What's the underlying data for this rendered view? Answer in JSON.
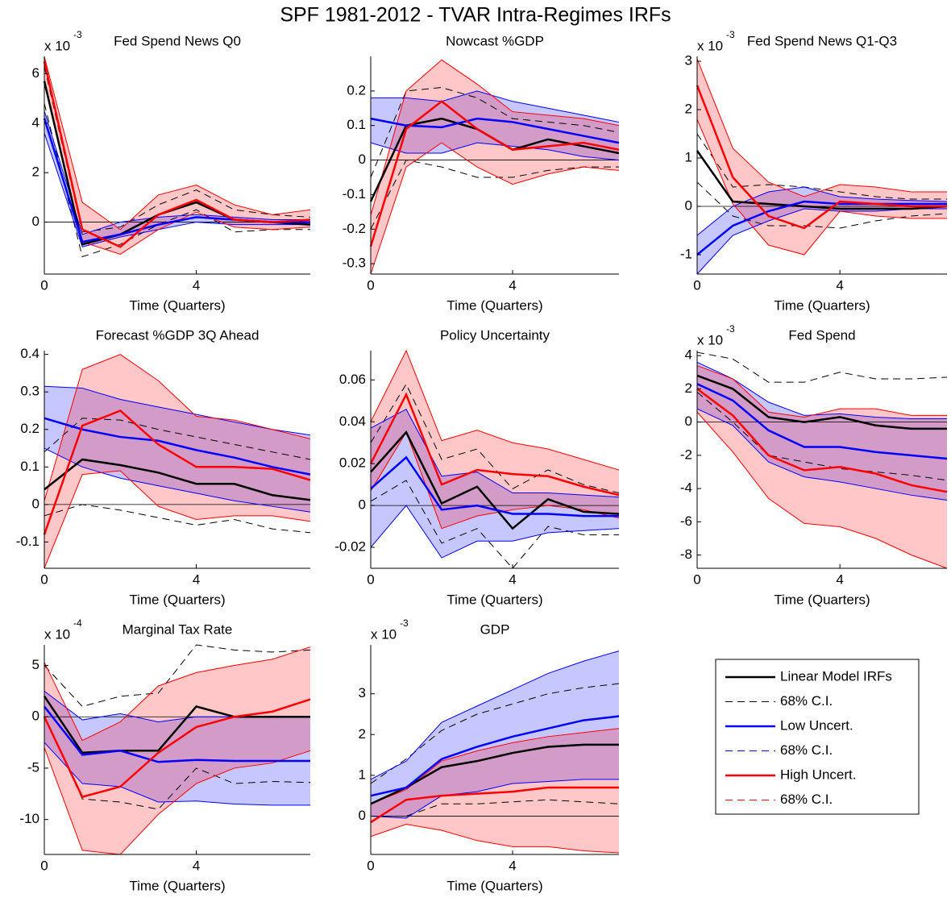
{
  "title": "SPF 1981-2012 - TVAR Intra-Regimes IRFs",
  "legend": {
    "entries": [
      {
        "label": "Linear Model IRFs",
        "color": "#000000",
        "style": "solid"
      },
      {
        "label": "68% C.I.",
        "color": "#000000",
        "style": "dashed"
      },
      {
        "label": "Low Uncert.",
        "color": "#0000ff",
        "style": "solid"
      },
      {
        "label": "68% C.I.",
        "color": "#0000ff",
        "style": "dashed"
      },
      {
        "label": "High Uncert.",
        "color": "#ff0000",
        "style": "solid"
      },
      {
        "label": "68% C.I.",
        "color": "#ff0000",
        "style": "dashed"
      }
    ]
  },
  "chart_data": [
    {
      "type": "line",
      "title": "Fed Spend News Q0",
      "xlabel": "Time (Quarters)",
      "multiplier": {
        "base": "x 10",
        "exponent": "-3"
      },
      "x": [
        0,
        1,
        2,
        3,
        4,
        5,
        6,
        7
      ],
      "xlim": [
        0,
        7
      ],
      "xticks": [
        0,
        4
      ],
      "ylim": [
        -2.1,
        6.7
      ],
      "yticks": [
        0,
        2,
        4,
        6
      ],
      "series": [
        {
          "color": "#000000",
          "band": false,
          "values": [
            5.7,
            -0.9,
            -0.5,
            0.3,
            0.8,
            0.1,
            0,
            -0.1
          ],
          "ci_lower": [
            4.8,
            -1.4,
            -0.9,
            -0.1,
            0.5,
            -0.4,
            -0.3,
            -0.3
          ],
          "ci_upper": [
            6.3,
            -0.4,
            -0.2,
            0.7,
            1.3,
            0.5,
            0.3,
            0.2
          ]
        },
        {
          "color": "#0000ff",
          "band": true,
          "values": [
            4.2,
            -0.8,
            -0.5,
            -0.1,
            0.2,
            0.1,
            0,
            0
          ],
          "ci_lower": [
            3.6,
            -1,
            -0.6,
            -0.3,
            0,
            -0.1,
            -0.1,
            -0.1
          ],
          "ci_upper": [
            4.5,
            -0.5,
            0,
            0.2,
            0.3,
            0.2,
            0.1,
            0.1
          ]
        },
        {
          "color": "#ff0000",
          "band": true,
          "values": [
            6.5,
            -0.3,
            -1.0,
            0.3,
            0.9,
            0.1,
            0,
            0.1
          ],
          "ci_lower": [
            5.6,
            -0.8,
            -1.3,
            -0.3,
            0.4,
            -0.2,
            -0.3,
            -0.2
          ],
          "ci_upper": [
            6.7,
            0.8,
            -0.3,
            1.1,
            1.5,
            0.7,
            0.3,
            0.5
          ]
        }
      ]
    },
    {
      "type": "line",
      "title": "Nowcast %GDP",
      "xlabel": "Time (Quarters)",
      "x": [
        0,
        1,
        2,
        3,
        4,
        5,
        6,
        7
      ],
      "xlim": [
        0,
        7
      ],
      "xticks": [
        0,
        4
      ],
      "ylim": [
        -0.33,
        0.3
      ],
      "yticks": [
        -0.3,
        -0.2,
        -0.1,
        0,
        0.1,
        0.2
      ],
      "series": [
        {
          "color": "#000000",
          "band": false,
          "values": [
            -0.12,
            0.1,
            0.12,
            0.09,
            0.03,
            0.06,
            0.04,
            0.02
          ],
          "ci_lower": [
            -0.2,
            0,
            -0.02,
            -0.05,
            -0.05,
            -0.03,
            -0.02,
            -0.02
          ],
          "ci_upper": [
            -0.05,
            0.2,
            0.21,
            0.18,
            0.12,
            0.11,
            0.1,
            0.08
          ]
        },
        {
          "color": "#0000ff",
          "band": true,
          "values": [
            0.12,
            0.1,
            0.095,
            0.12,
            0.11,
            0.09,
            0.07,
            0.05
          ],
          "ci_lower": [
            0.05,
            0.02,
            0.02,
            0.05,
            0.04,
            0.03,
            0.01,
            0
          ],
          "ci_upper": [
            0.18,
            0.18,
            0.17,
            0.2,
            0.17,
            0.15,
            0.13,
            0.11
          ]
        },
        {
          "color": "#ff0000",
          "band": true,
          "values": [
            -0.25,
            0.09,
            0.17,
            0.09,
            0.03,
            0.04,
            0.05,
            0.03
          ],
          "ci_lower": [
            -0.33,
            -0.02,
            0.05,
            -0.02,
            -0.07,
            -0.04,
            -0.02,
            -0.03
          ],
          "ci_upper": [
            -0.16,
            0.2,
            0.29,
            0.22,
            0.14,
            0.13,
            0.12,
            0.1
          ]
        }
      ]
    },
    {
      "type": "line",
      "title": "Fed Spend News Q1-Q3",
      "xlabel": "Time (Quarters)",
      "multiplier": {
        "base": "x 10",
        "exponent": "-3"
      },
      "x": [
        0,
        1,
        2,
        3,
        4,
        5,
        6,
        7
      ],
      "xlim": [
        0,
        7
      ],
      "xticks": [
        0,
        4
      ],
      "ylim": [
        -1.4,
        3.1
      ],
      "yticks": [
        -1,
        0,
        1,
        2,
        3
      ],
      "series": [
        {
          "color": "#000000",
          "band": false,
          "values": [
            1.15,
            0.1,
            0.05,
            0,
            -0.05,
            -0.05,
            -0.05,
            0
          ],
          "ci_lower": [
            0.5,
            -0.2,
            -0.4,
            -0.4,
            -0.45,
            -0.3,
            -0.2,
            -0.15
          ],
          "ci_upper": [
            1.5,
            0.4,
            0.45,
            0.4,
            0.3,
            0.2,
            0.15,
            0.15
          ]
        },
        {
          "color": "#0000ff",
          "band": true,
          "values": [
            -1,
            -0.4,
            -0.1,
            0.1,
            0.05,
            0.05,
            0.05,
            0.05
          ],
          "ci_lower": [
            -1.4,
            -0.6,
            -0.3,
            -0.05,
            -0.1,
            -0.1,
            -0.05,
            -0.05
          ],
          "ci_upper": [
            -0.6,
            0,
            0.3,
            0.4,
            0.2,
            0.15,
            0.12,
            0.1
          ]
        },
        {
          "color": "#ff0000",
          "band": true,
          "values": [
            2.5,
            0.6,
            -0.2,
            -0.45,
            0.1,
            0.05,
            0,
            0
          ],
          "ci_lower": [
            1.8,
            0.05,
            -0.8,
            -1.0,
            -0.1,
            -0.2,
            -0.25,
            -0.25
          ],
          "ci_upper": [
            3.05,
            1.2,
            0.5,
            0.2,
            0.45,
            0.4,
            0.3,
            0.3
          ]
        }
      ]
    },
    {
      "type": "line",
      "title": "Forecast %GDP 3Q Ahead",
      "xlabel": "Time (Quarters)",
      "x": [
        0,
        1,
        2,
        3,
        4,
        5,
        6,
        7
      ],
      "xlim": [
        0,
        7
      ],
      "xticks": [
        0,
        4
      ],
      "ylim": [
        -0.17,
        0.41
      ],
      "yticks": [
        -0.1,
        0,
        0.1,
        0.2,
        0.3,
        0.4
      ],
      "series": [
        {
          "color": "#000000",
          "band": false,
          "values": [
            0.04,
            0.12,
            0.105,
            0.085,
            0.055,
            0.055,
            0.025,
            0.012
          ],
          "ci_lower": [
            -0.03,
            0,
            -0.015,
            -0.035,
            -0.055,
            -0.04,
            -0.065,
            -0.075
          ],
          "ci_upper": [
            0.14,
            0.23,
            0.225,
            0.2,
            0.18,
            0.16,
            0.14,
            0.12
          ]
        },
        {
          "color": "#0000ff",
          "band": true,
          "values": [
            0.23,
            0.2,
            0.18,
            0.17,
            0.145,
            0.125,
            0.1,
            0.08
          ],
          "ci_lower": [
            0.15,
            0.1,
            0.07,
            0.05,
            0.03,
            0.01,
            -0.005,
            -0.02
          ],
          "ci_upper": [
            0.315,
            0.31,
            0.28,
            0.26,
            0.24,
            0.22,
            0.2,
            0.185
          ]
        },
        {
          "color": "#ff0000",
          "band": true,
          "values": [
            -0.08,
            0.21,
            0.25,
            0.16,
            0.1,
            0.1,
            0.095,
            0.065
          ],
          "ci_lower": [
            -0.17,
            0.08,
            0.09,
            -0.005,
            -0.04,
            -0.03,
            -0.03,
            -0.045
          ],
          "ci_upper": [
            0.01,
            0.36,
            0.4,
            0.33,
            0.235,
            0.225,
            0.2,
            0.175
          ]
        }
      ]
    },
    {
      "type": "line",
      "title": "Policy Uncertainty",
      "xlabel": "Time (Quarters)",
      "x": [
        0,
        1,
        2,
        3,
        4,
        5,
        6,
        7
      ],
      "xlim": [
        0,
        7
      ],
      "xticks": [
        0,
        4
      ],
      "ylim": [
        -0.03,
        0.074
      ],
      "yticks": [
        -0.02,
        0,
        0.02,
        0.04,
        0.06
      ],
      "series": [
        {
          "color": "#000000",
          "band": false,
          "values": [
            0.016,
            0.035,
            0.001,
            0.009,
            -0.011,
            0.003,
            -0.003,
            -0.004
          ],
          "ci_lower": [
            0.002,
            0.012,
            -0.018,
            -0.011,
            -0.03,
            -0.01,
            -0.014,
            -0.014
          ],
          "ci_upper": [
            0.03,
            0.058,
            0.022,
            0.027,
            0.008,
            0.017,
            0.01,
            0.006
          ]
        },
        {
          "color": "#0000ff",
          "band": true,
          "values": [
            0.008,
            0.023,
            -0.002,
            0,
            -0.004,
            -0.004,
            -0.005,
            -0.005
          ],
          "ci_lower": [
            -0.02,
            0,
            -0.025,
            -0.017,
            -0.017,
            -0.013,
            -0.012,
            -0.011
          ],
          "ci_upper": [
            0.037,
            0.046,
            0.014,
            0.016,
            0.006,
            0.006,
            0.005,
            0.004
          ]
        },
        {
          "color": "#ff0000",
          "band": true,
          "values": [
            0.02,
            0.053,
            0.01,
            0.017,
            0.015,
            0.014,
            0.009,
            0.005
          ],
          "ci_lower": [
            0.007,
            0.035,
            -0.011,
            -0.005,
            -0.002,
            0,
            -0.002,
            -0.006
          ],
          "ci_upper": [
            0.04,
            0.074,
            0.031,
            0.036,
            0.03,
            0.027,
            0.022,
            0.017
          ]
        }
      ]
    },
    {
      "type": "line",
      "title": "Fed Spend",
      "xlabel": "Time (Quarters)",
      "multiplier": {
        "base": "x 10",
        "exponent": "-3"
      },
      "x": [
        0,
        1,
        2,
        3,
        4,
        5,
        6,
        7
      ],
      "xlim": [
        0,
        7
      ],
      "xticks": [
        0,
        4
      ],
      "ylim": [
        -8.8,
        4.3
      ],
      "yticks": [
        -8,
        -6,
        -4,
        -2,
        0,
        2,
        4
      ],
      "series": [
        {
          "color": "#000000",
          "band": false,
          "values": [
            2.8,
            2,
            0.3,
            0,
            0.3,
            -0.2,
            -0.4,
            -0.4
          ],
          "ci_lower": [
            1.8,
            0,
            -2,
            -2.4,
            -2.8,
            -3,
            -3.2,
            -3.5
          ],
          "ci_upper": [
            4.2,
            3.8,
            2.4,
            2.4,
            3,
            2.6,
            2.6,
            2.7
          ]
        },
        {
          "color": "#0000ff",
          "band": true,
          "values": [
            2.3,
            1.3,
            -0.5,
            -1.5,
            -1.5,
            -1.8,
            -2,
            -2.2
          ],
          "ci_lower": [
            0.8,
            -0.2,
            -2.4,
            -3.3,
            -3.6,
            -4,
            -4.4,
            -4.7
          ],
          "ci_upper": [
            3.6,
            2.6,
            1.2,
            0.4,
            0.5,
            0.3,
            0.2,
            0.2
          ]
        },
        {
          "color": "#ff0000",
          "band": true,
          "values": [
            2,
            0.4,
            -2,
            -2.9,
            -2.7,
            -3.1,
            -3.8,
            -4.2
          ],
          "ci_lower": [
            0.6,
            -1.8,
            -4.6,
            -6.1,
            -6.3,
            -7,
            -8,
            -8.8
          ],
          "ci_upper": [
            3.4,
            2.6,
            0.6,
            0.3,
            0.8,
            0.8,
            0.4,
            0.4
          ]
        }
      ]
    },
    {
      "type": "line",
      "title": "Marginal Tax Rate",
      "xlabel": "Time (Quarters)",
      "multiplier": {
        "base": "x 10",
        "exponent": "-4"
      },
      "x": [
        0,
        1,
        2,
        3,
        4,
        5,
        6,
        7
      ],
      "xlim": [
        0,
        7
      ],
      "xticks": [
        0,
        4
      ],
      "ylim": [
        -13.4,
        7
      ],
      "yticks": [
        -10,
        -5,
        0,
        5
      ],
      "series": [
        {
          "color": "#000000",
          "band": false,
          "values": [
            2,
            -3.5,
            -3.3,
            -3.3,
            1,
            0,
            0,
            0
          ],
          "ci_lower": [
            0,
            -8,
            -8.3,
            -9,
            -5,
            -6.5,
            -6.3,
            -6.4
          ],
          "ci_upper": [
            5,
            1,
            2,
            2.3,
            7,
            6.5,
            6.3,
            6.5
          ]
        },
        {
          "color": "#0000ff",
          "band": true,
          "values": [
            1,
            -3.7,
            -3.3,
            -4.4,
            -4.2,
            -4.3,
            -4.3,
            -4.3
          ],
          "ci_lower": [
            -2.5,
            -6.5,
            -6.8,
            -8.3,
            -8.2,
            -8.5,
            -8.6,
            -8.6
          ],
          "ci_upper": [
            2.5,
            -0.3,
            0.3,
            -0.5,
            0,
            0,
            0,
            0
          ]
        },
        {
          "color": "#ff0000",
          "band": true,
          "values": [
            0,
            -7.8,
            -6.8,
            -3.5,
            -1,
            0,
            0.5,
            1.7
          ],
          "ci_lower": [
            -3,
            -13,
            -13.4,
            -9.5,
            -6.5,
            -5,
            -4.5,
            -3.3
          ],
          "ci_upper": [
            5.3,
            -2.3,
            -0.5,
            3,
            4.3,
            5,
            5.6,
            6.8
          ]
        }
      ]
    },
    {
      "type": "line",
      "title": "GDP",
      "xlabel": "Time (Quarters)",
      "multiplier": {
        "base": "x 10",
        "exponent": "-3"
      },
      "x": [
        0,
        1,
        2,
        3,
        4,
        5,
        6,
        7
      ],
      "xlim": [
        0,
        7
      ],
      "xticks": [
        0,
        4
      ],
      "ylim": [
        -0.94,
        4.2
      ],
      "yticks": [
        0,
        1,
        2,
        3
      ],
      "series": [
        {
          "color": "#000000",
          "band": false,
          "values": [
            0.3,
            0.7,
            1.2,
            1.35,
            1.55,
            1.7,
            1.75,
            1.75
          ],
          "ci_lower": [
            0,
            0,
            0.3,
            0.3,
            0.35,
            0.4,
            0.35,
            0.3
          ],
          "ci_upper": [
            0.8,
            1.4,
            2.1,
            2.5,
            2.75,
            3,
            3.15,
            3.25
          ]
        },
        {
          "color": "#0000ff",
          "band": true,
          "values": [
            0.5,
            0.7,
            1.4,
            1.7,
            1.95,
            2.15,
            2.35,
            2.45
          ],
          "ci_lower": [
            0,
            -0.05,
            0.5,
            0.6,
            0.8,
            0.85,
            0.9,
            0.9
          ],
          "ci_upper": [
            0.9,
            1.35,
            2.3,
            2.7,
            3.1,
            3.5,
            3.8,
            4.05
          ]
        },
        {
          "color": "#ff0000",
          "band": true,
          "values": [
            -0.15,
            0.4,
            0.5,
            0.55,
            0.6,
            0.7,
            0.7,
            0.7
          ],
          "ci_lower": [
            -0.5,
            -0.2,
            -0.35,
            -0.6,
            -0.75,
            -0.75,
            -0.85,
            -0.9
          ],
          "ci_upper": [
            0.3,
            0.65,
            1.35,
            1.6,
            1.8,
            1.95,
            2.05,
            2.15
          ]
        }
      ]
    }
  ]
}
